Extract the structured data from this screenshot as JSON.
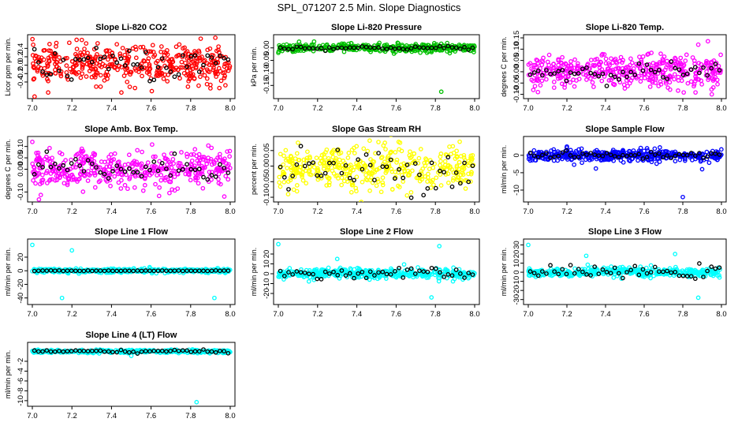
{
  "figure_title": "SPL_071207  2.5 Min. Slope Diagnostics",
  "chart_data": [
    {
      "type": "scatter",
      "title": "Slope Li-820 CO2",
      "ylabel": "Licor ppm per min.",
      "xlim": [
        7.0,
        8.0
      ],
      "ylim": [
        -0.72,
        0.65
      ],
      "xticks": [
        "7.0",
        "7.2",
        "7.4",
        "7.6",
        "7.8",
        "8.0"
      ],
      "yticks": [
        -0.4,
        -0.2,
        0.0,
        0.2,
        0.4
      ],
      "ytick_labels": [
        "-0.4",
        "-0.2",
        "0.0",
        "0.2",
        "0.4"
      ],
      "color": "#ff0000",
      "base": 0.02,
      "spread": 0.22,
      "black_spread": 0.2,
      "outliers": [
        [
          7.25,
          0.6
        ],
        [
          7.08,
          -0.65
        ],
        [
          7.45,
          -0.65
        ],
        [
          7.9,
          -0.55
        ],
        [
          7.33,
          0.52
        ]
      ]
    },
    {
      "type": "scatter",
      "title": "Slope Li-820 Pressure",
      "ylabel": "kPa per min.",
      "xlim": [
        7.0,
        8.0
      ],
      "ylim": [
        -0.19,
        0.04
      ],
      "xticks": [
        "7.0",
        "7.2",
        "7.4",
        "7.6",
        "7.8",
        "8.0"
      ],
      "yticks": [
        -0.15,
        -0.1,
        -0.05,
        0.0
      ],
      "ytick_labels": [
        "-0.15",
        "-0.10",
        "-0.05",
        "0.00"
      ],
      "color": "#00c000",
      "base": 0.0,
      "spread": 0.008,
      "black_spread": 0.004,
      "outliers": [
        [
          7.83,
          -0.175
        ],
        [
          7.0,
          -0.02
        ],
        [
          7.68,
          -0.015
        ]
      ]
    },
    {
      "type": "scatter",
      "title": "Slope Li-820 Temp.",
      "ylabel": "degrees C per min.",
      "xlim": [
        7.0,
        8.0
      ],
      "ylim": [
        -0.105,
        0.15
      ],
      "xticks": [
        "7.0",
        "7.2",
        "7.4",
        "7.6",
        "7.8",
        "8.0"
      ],
      "yticks": [
        -0.1,
        -0.05,
        0.0,
        0.05,
        0.1,
        0.15
      ],
      "ytick_labels": [
        "-0.10",
        "-0.05",
        "0.00",
        "0.05",
        "0.10",
        "0.15"
      ],
      "color": "#ff00ff",
      "base": 0.0,
      "spread": 0.035,
      "black_spread": 0.02,
      "outliers": [
        [
          7.93,
          0.135
        ],
        [
          7.95,
          -0.1
        ],
        [
          7.05,
          -0.09
        ],
        [
          7.88,
          0.12
        ]
      ]
    },
    {
      "type": "scatter",
      "title": "Slope Amb. Box Temp.",
      "ylabel": "degrees C per min.",
      "xlim": [
        7.0,
        8.0
      ],
      "ylim": [
        -0.13,
        0.13
      ],
      "xticks": [
        "7.0",
        "7.2",
        "7.4",
        "7.6",
        "7.8",
        "8.0"
      ],
      "yticks": [
        -0.1,
        0.0,
        0.05,
        0.1
      ],
      "ytick_labels": [
        "-0.10",
        "0.00",
        "0.05",
        "0.10"
      ],
      "color": "#ff00ff",
      "base": 0.0,
      "spread": 0.04,
      "black_spread": 0.03,
      "outliers": [
        [
          7.0,
          0.12
        ],
        [
          7.97,
          -0.12
        ],
        [
          7.25,
          0.09
        ]
      ]
    },
    {
      "type": "scatter",
      "title": "Slope Gas Stream RH",
      "ylabel": "percent per min.",
      "xlim": [
        7.0,
        8.0
      ],
      "ylim": [
        -0.105,
        0.085
      ],
      "xticks": [
        "7.0",
        "7.2",
        "7.4",
        "7.6",
        "7.8",
        "8.0"
      ],
      "yticks": [
        -0.1,
        -0.05,
        0.0,
        0.05
      ],
      "ytick_labels": [
        "-0.10",
        "-0.05",
        "0.00",
        "0.05"
      ],
      "color": "#ffff00",
      "base": -0.01,
      "spread": 0.035,
      "black_spread": 0.035,
      "outliers": [
        [
          7.1,
          0.075
        ],
        [
          7.05,
          -0.09
        ],
        [
          7.62,
          0.075
        ]
      ]
    },
    {
      "type": "scatter",
      "title": "Slope Sample Flow",
      "ylabel": "ml/min per min.",
      "xlim": [
        7.0,
        8.0
      ],
      "ylim": [
        -12.5,
        4.5
      ],
      "xticks": [
        "7.0",
        "7.2",
        "7.4",
        "7.6",
        "7.8",
        "8.0"
      ],
      "yticks": [
        -10,
        -5,
        0
      ],
      "ytick_labels": [
        "-10",
        "-5",
        "0"
      ],
      "color": "#0000ff",
      "base": 0.0,
      "spread": 0.8,
      "black_spread": 0.5,
      "outliers": [
        [
          7.8,
          -12.0
        ],
        [
          7.35,
          -3.8
        ],
        [
          7.9,
          -4.0
        ],
        [
          7.2,
          2.5
        ]
      ]
    },
    {
      "type": "scatter",
      "title": "Slope Line 1 Flow",
      "ylabel": "ml/min per min.",
      "xlim": [
        7.0,
        8.0
      ],
      "ylim": [
        -45,
        42
      ],
      "xticks": [
        "7.0",
        "7.2",
        "7.4",
        "7.6",
        "7.8",
        "8.0"
      ],
      "yticks": [
        -40,
        -20,
        0,
        20
      ],
      "ytick_labels": [
        "-40",
        "-20",
        "0",
        "20"
      ],
      "color": "#00ffff",
      "base": 0.0,
      "spread": 1.5,
      "black_spread": 0.2,
      "outliers": [
        [
          7.15,
          -40
        ],
        [
          7.92,
          -40
        ],
        [
          7.0,
          38
        ],
        [
          7.2,
          30
        ]
      ]
    },
    {
      "type": "scatter",
      "title": "Slope Line 2 Flow",
      "ylabel": "ml/min per min.",
      "xlim": [
        7.0,
        8.0
      ],
      "ylim": [
        -28,
        32
      ],
      "xticks": [
        "7.0",
        "7.2",
        "7.4",
        "7.6",
        "7.8",
        "8.0"
      ],
      "yticks": [
        -20,
        -10,
        0,
        10,
        20
      ],
      "ytick_labels": [
        "-20",
        "-10",
        "0",
        "10",
        "20"
      ],
      "color": "#00ffff",
      "base": 0.0,
      "spread": 2.5,
      "black_spread": 3.0,
      "outliers": [
        [
          7.0,
          30
        ],
        [
          7.78,
          -24
        ],
        [
          7.82,
          28
        ],
        [
          7.3,
          15
        ]
      ]
    },
    {
      "type": "scatter",
      "title": "Slope Line 3 Flow",
      "ylabel": "ml/min per min.",
      "xlim": [
        7.0,
        8.0
      ],
      "ylim": [
        -32,
        33
      ],
      "xticks": [
        "7.0",
        "7.2",
        "7.4",
        "7.6",
        "7.8",
        "8.0"
      ],
      "yticks": [
        -30,
        -20,
        -10,
        0,
        10,
        20,
        30
      ],
      "ytick_labels": [
        "-30",
        "-20",
        "-10",
        "0",
        "10",
        "20",
        "30"
      ],
      "color": "#00ffff",
      "base": 0.0,
      "spread": 2.5,
      "black_spread": 3.0,
      "outliers": [
        [
          7.0,
          30
        ],
        [
          7.88,
          -28
        ],
        [
          7.76,
          20
        ],
        [
          7.3,
          18
        ]
      ]
    },
    {
      "type": "scatter",
      "title": "Slope Line 4 (LT) Flow",
      "ylabel": "ml/min per min.",
      "xlim": [
        7.0,
        8.0
      ],
      "ylim": [
        -10.5,
        1.2
      ],
      "xticks": [
        "7.0",
        "7.2",
        "7.4",
        "7.6",
        "7.8",
        "8.0"
      ],
      "yticks": [
        -10,
        -8,
        -6,
        -4,
        -2
      ],
      "ytick_labels": [
        "-10",
        "-8",
        "-6",
        "-4",
        "-2"
      ],
      "color": "#00ffff",
      "base": 0.0,
      "spread": 0.15,
      "black_spread": 0.15,
      "outliers": [
        [
          7.83,
          -10.3
        ],
        [
          7.5,
          -0.9
        ]
      ]
    }
  ]
}
